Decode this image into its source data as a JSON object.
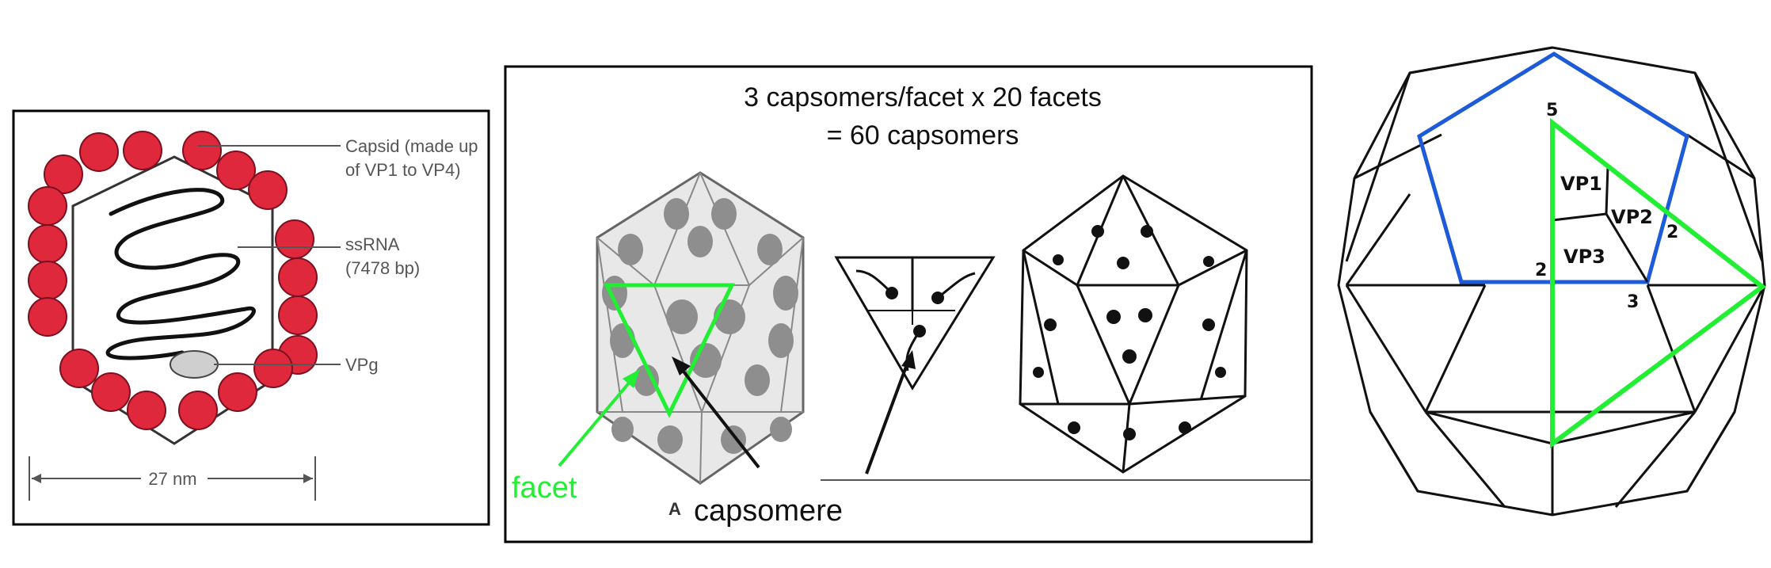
{
  "panel1": {
    "capsid_label_line1": "Capsid (made up",
    "capsid_label_line2": "of VP1 to VP4)",
    "ssrna_label_line1": "ssRNA",
    "ssrna_label_line2": "(7478 bp)",
    "vpg_label": "VPg",
    "scale_label": "27 nm",
    "capsomere_color": "#e0283c"
  },
  "panel2": {
    "title_line1": "3 capsomers/facet x 20 facets",
    "title_line2": "= 60 capsomers",
    "facet_label": "facet",
    "capsomere_label": "capsomere",
    "figure_letter": "A",
    "facet_color": "#22ee33"
  },
  "panel3": {
    "vp1": "VP1",
    "vp2": "VP2",
    "vp3": "VP3",
    "axis5": "5",
    "axis3": "3",
    "axis2_left": "2",
    "axis2_right": "2",
    "pentagon_color": "#1e5bd8",
    "triangle_color": "#22ee33"
  }
}
